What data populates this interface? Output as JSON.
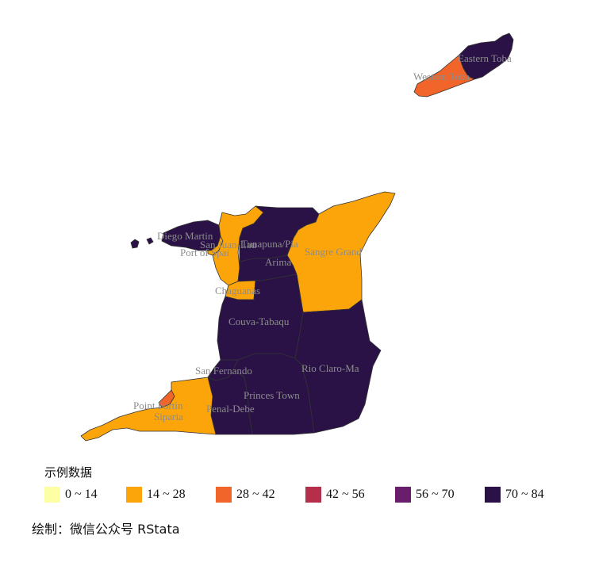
{
  "legend": {
    "title": "示例数据",
    "items": [
      {
        "label": "0 ~ 14",
        "color": "#FCFFA4"
      },
      {
        "label": "14 ~ 28",
        "color": "#FCA50A"
      },
      {
        "label": "28 ~ 42",
        "color": "#F1652A"
      },
      {
        "label": "42 ~ 56",
        "color": "#B52F4B"
      },
      {
        "label": "56 ~ 70",
        "color": "#6A1D6B"
      },
      {
        "label": "70 ~ 84",
        "color": "#2A1247"
      }
    ]
  },
  "regions": [
    {
      "name": "Eastern Toba",
      "class": 5
    },
    {
      "name": "Western Toba",
      "class": 2
    },
    {
      "name": "Diego Martin",
      "class": 5
    },
    {
      "name": "San Juan-Lau",
      "class": 1
    },
    {
      "name": "Port of Spai",
      "class": 1
    },
    {
      "name": "Tunapuna/Pia",
      "class": 5
    },
    {
      "name": "Arima",
      "class": 5
    },
    {
      "name": "Sangre Grand",
      "class": 4
    },
    {
      "name": "Chaguanas",
      "class": 3
    },
    {
      "name": "Couva-Tabaqu",
      "class": 0
    },
    {
      "name": "Rio Claro-Ma",
      "class": 0
    },
    {
      "name": "San Fernando",
      "class": 0
    },
    {
      "name": "Princes Town",
      "class": 5
    },
    {
      "name": "Penal-Debe",
      "class": 2
    },
    {
      "name": "Point Fortin",
      "class": 1
    },
    {
      "name": "Siparia",
      "class": 4
    }
  ],
  "caption": "绘制：微信公众号 RStata"
}
